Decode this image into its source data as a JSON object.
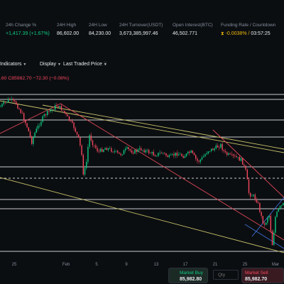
{
  "stats": [
    {
      "label": "24h Change %",
      "value": "+1,417.39 (+1.67%)",
      "tone": "up"
    },
    {
      "label": "24H High",
      "value": "86,602.00",
      "tone": "neutral"
    },
    {
      "label": "24H Low",
      "value": "84,230.00",
      "tone": "neutral"
    },
    {
      "label": "24H Turnover(USDT)",
      "value": "3,673,385,997.46",
      "tone": "neutral"
    },
    {
      "label": "Open Interest(BTC)",
      "value": "46,502.771",
      "tone": "neutral"
    }
  ],
  "funding": {
    "label": "Funding Rate / Countdown",
    "rate": "-0.0038%",
    "countdown": "03:57:25",
    "icon": "hourglass-icon"
  },
  "toolbar": {
    "indicators": "Indicators",
    "display": "Display",
    "price_source": "Last Traded Price",
    "candle_icon": "candlestick-type-icon"
  },
  "ohlc": {
    "text": ".60  C85982.70  −72.30 (−0.08%)"
  },
  "x_axis": {
    "ticks": [
      "25",
      "Feb",
      "5",
      "9",
      "13",
      "17",
      "21",
      "25",
      "Mar"
    ]
  },
  "order_panel": {
    "buy_label": "Market Buy",
    "buy_price": "85,982.80",
    "qty_placeholder": "Qty",
    "sell_label": "Market Sell",
    "sell_price": "85,982.70"
  },
  "colors": {
    "up": "#0ecb81",
    "down": "#f6465d",
    "accent": "#f0b90b",
    "background": "#0b0e11",
    "trendline_yellow": "#c9c26a",
    "trendline_red": "#e04858",
    "trendline_blue": "#3d6fd8"
  }
}
